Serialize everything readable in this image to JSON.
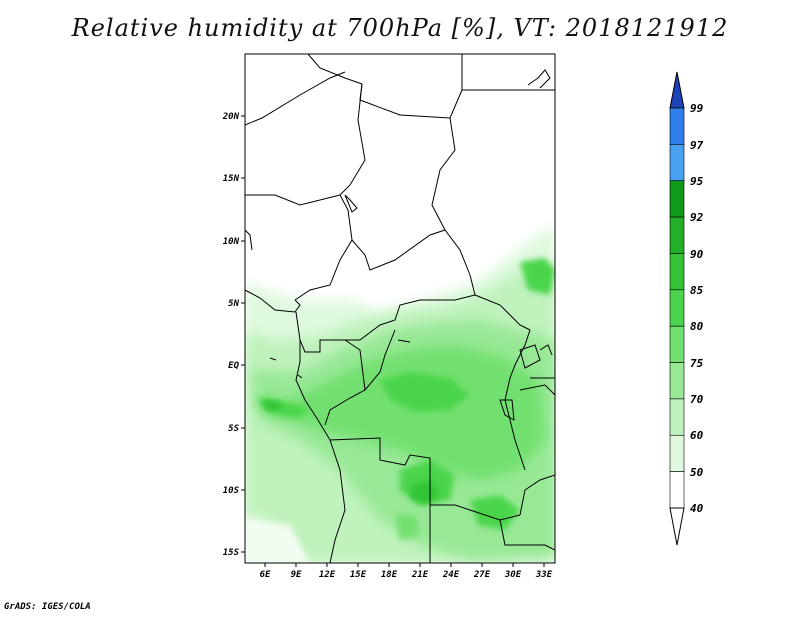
{
  "title": "Relative humidity at 700hPa [%], VT: 2018121912",
  "footer": "GrADS: IGES/COLA",
  "lat_labels": [
    "20N",
    "15N",
    "10N",
    "5N",
    "EQ",
    "5S",
    "10S",
    "15S"
  ],
  "lon_labels": [
    "6E",
    "9E",
    "12E",
    "15E",
    "18E",
    "21E",
    "24E",
    "27E",
    "30E",
    "33E"
  ],
  "colorbar": {
    "levels": [
      "99",
      "97",
      "95",
      "92",
      "90",
      "85",
      "80",
      "75",
      "70",
      "60",
      "50",
      "40"
    ],
    "colors": [
      "#1f5fd6",
      "#2f7de8",
      "#4aa0f0",
      "#0f9a1a",
      "#22b026",
      "#33c435",
      "#4cd54c",
      "#72e070",
      "#98e896",
      "#bff2bd",
      "#dff9de",
      "#ffffff"
    ],
    "top_arrow_color": "#1c44b8",
    "bottom_arrow_color": "#ffffff"
  },
  "map_colors": {
    "land_dry": "#ffffff",
    "border": "#000000"
  }
}
